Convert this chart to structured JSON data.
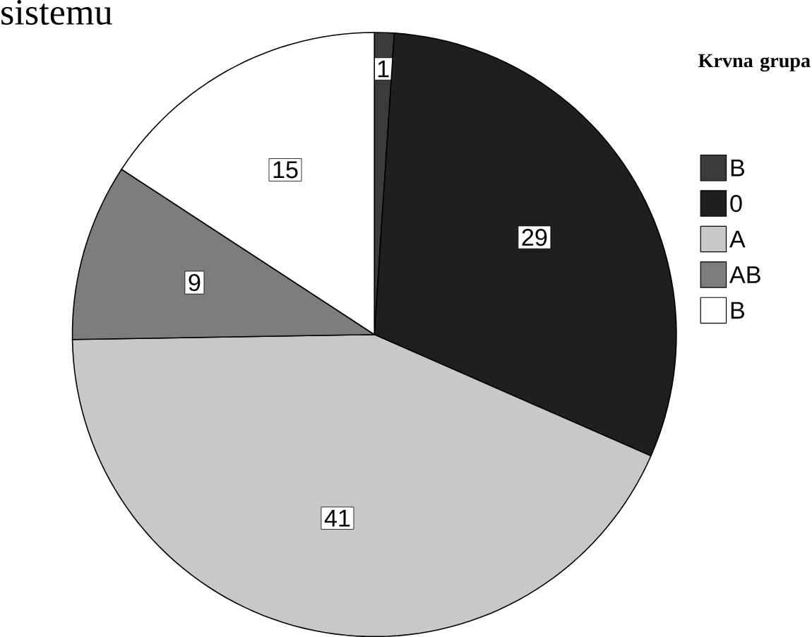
{
  "chart_data": {
    "type": "pie",
    "title": "sistemu",
    "legend_title": "Krvna grupa",
    "legend": "right",
    "data_labels": true,
    "categories": [
      "B",
      "0",
      "A",
      "AB",
      "B"
    ],
    "values": [
      1,
      29,
      41,
      9,
      15
    ],
    "colors": [
      "#3a3b3d",
      "#1e1f21",
      "#c8c8c8",
      "#7d7d7f",
      "#ffffff"
    ]
  }
}
